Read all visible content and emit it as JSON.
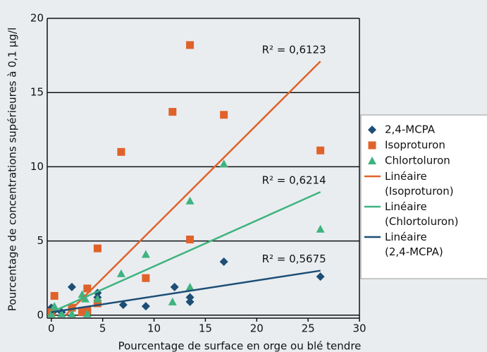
{
  "chart_data": {
    "type": "scatter",
    "xlabel": "Pourcentage de surface en orge ou blé tendre",
    "ylabel": "Pourcentage de concentrations supérieures à 0,1 µg/l",
    "xlim": [
      -0.4,
      30
    ],
    "ylim": [
      -0.2,
      20
    ],
    "xticks": [
      0,
      5,
      10,
      15,
      20,
      25,
      30
    ],
    "yticks": [
      0,
      5,
      10,
      15,
      20
    ],
    "grid": true,
    "series": [
      {
        "name": "2,4-MCPA",
        "type": "scatter",
        "marker": "diamond",
        "color": "#1d4e75",
        "x": [
          0,
          0.3,
          1,
          2,
          3,
          3.5,
          4.5,
          4.5,
          7,
          9.2,
          12,
          13.5,
          13.5,
          16.8,
          26.2
        ],
        "values": [
          0.5,
          0.3,
          0.2,
          1.9,
          0.2,
          0.3,
          1.5,
          1.2,
          0.7,
          0.6,
          1.9,
          1.2,
          0.9,
          3.6,
          2.6
        ]
      },
      {
        "name": "Isoproturon",
        "type": "scatter",
        "marker": "square",
        "color": "#e0622a",
        "x": [
          0,
          0.3,
          2,
          3,
          3.5,
          3.5,
          4.5,
          4.5,
          6.8,
          9.2,
          11.8,
          13.5,
          13.5,
          16.8,
          26.2
        ],
        "values": [
          0.2,
          1.3,
          0.5,
          0.2,
          1.8,
          0.3,
          4.5,
          0.8,
          11,
          2.5,
          13.7,
          18.2,
          5.1,
          13.5,
          11.1
        ]
      },
      {
        "name": "Chlortoluron",
        "type": "scatter",
        "marker": "triangle",
        "color": "#3fb37f",
        "x": [
          0,
          0.3,
          1,
          2,
          3,
          3.3,
          3.5,
          4.5,
          6.8,
          9.2,
          11.8,
          13.5,
          13.5,
          16.8,
          26.2
        ],
        "values": [
          0.1,
          0.6,
          0.1,
          0.1,
          1.4,
          1.1,
          0.1,
          1.1,
          2.8,
          4.1,
          0.9,
          7.7,
          1.9,
          10.2,
          5.8
        ]
      },
      {
        "name": "Linéaire (Isoproturon)",
        "type": "line",
        "color": "#e0622a",
        "annotation": "R² = 0,6123",
        "x": [
          1.4,
          26.2
        ],
        "values": [
          0,
          17.1
        ]
      },
      {
        "name": "Linéaire (Chlortoluron)",
        "type": "line",
        "color": "#3fb37f",
        "annotation": "R² = 0,6214",
        "x": [
          0,
          26.2
        ],
        "values": [
          0.2,
          8.3
        ]
      },
      {
        "name": "Linéaire (2,4-MCPA)",
        "type": "line",
        "color": "#1d4e75",
        "annotation": "R² = 0,5675",
        "x": [
          0,
          26.2
        ],
        "values": [
          0.2,
          3.0
        ]
      }
    ]
  }
}
